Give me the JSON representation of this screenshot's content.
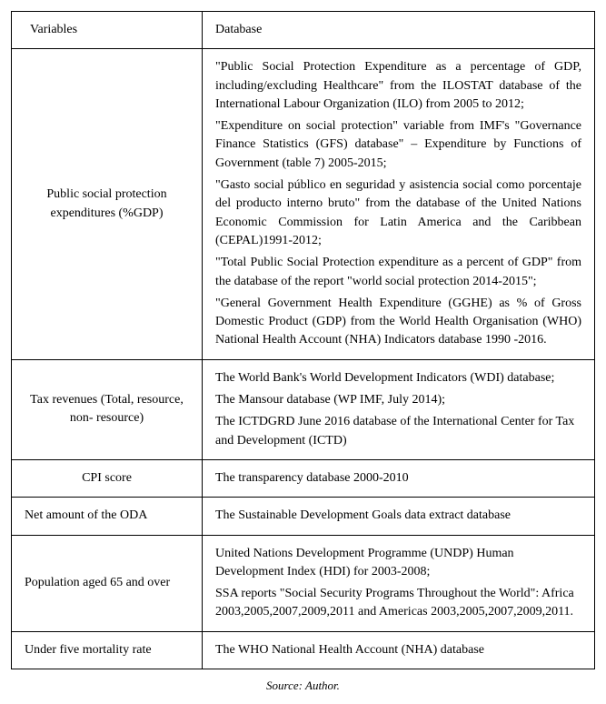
{
  "table": {
    "columns": [
      "Variables",
      "Database"
    ],
    "rows": [
      {
        "variable": "Public social protection expenditures (%GDP)",
        "db_paragraphs": [
          "\"Public Social Protection Expenditure as a percentage of GDP, including/excluding Healthcare\" from the ILOSTAT database of the International Labour Organization (ILO) from 2005 to 2012;",
          "\"Expenditure on social protection\" variable from IMF's \"Governance Finance Statistics (GFS) database\" – Expenditure by Functions of Government (table 7) 2005-2015;",
          " \"Gasto social público en seguridad y asistencia social como porcentaje del producto interno bruto\" from the database of the United Nations Economic Commission for Latin America and the Caribbean (CEPAL)1991-2012;",
          "\"Total Public Social Protection expenditure as a percent of GDP\" from the database of the report \"world social protection 2014-2015\";",
          " \"General Government Health Expenditure (GGHE) as % of Gross Domestic Product (GDP) from the World Health Organisation (WHO) National Health Account (NHA) Indicators database 1990 -2016."
        ],
        "justify": true
      },
      {
        "variable": "Tax revenues (Total, resource, non- resource)",
        "db_paragraphs": [
          "The World Bank's World Development Indicators (WDI) database;",
          "The Mansour database (WP IMF, July 2014);",
          "The ICTDGRD June 2016 database of the International Center for Tax and Development (ICTD)"
        ],
        "justify": false
      },
      {
        "variable": "CPI score",
        "db_paragraphs": [
          "The transparency database 2000-2010"
        ],
        "justify": false
      },
      {
        "variable": "Net amount of the ODA",
        "db_paragraphs": [
          "The Sustainable Development Goals data extract database"
        ],
        "justify": false,
        "var_align": "left"
      },
      {
        "variable": "Population aged 65 and over",
        "db_paragraphs": [
          "United Nations Development Programme (UNDP) Human Development Index (HDI) for 2003-2008;",
          "SSA reports \"Social Security Programs Throughout the World\": Africa 2003,2005,2007,2009,2011 and Americas 2003,2005,2007,2009,2011."
        ],
        "justify": false,
        "var_align": "left"
      },
      {
        "variable": "Under five mortality rate",
        "db_paragraphs": [
          "The WHO National Health Account (NHA) database"
        ],
        "justify": false,
        "var_align": "left"
      }
    ]
  },
  "source_label": "Source:  Author."
}
